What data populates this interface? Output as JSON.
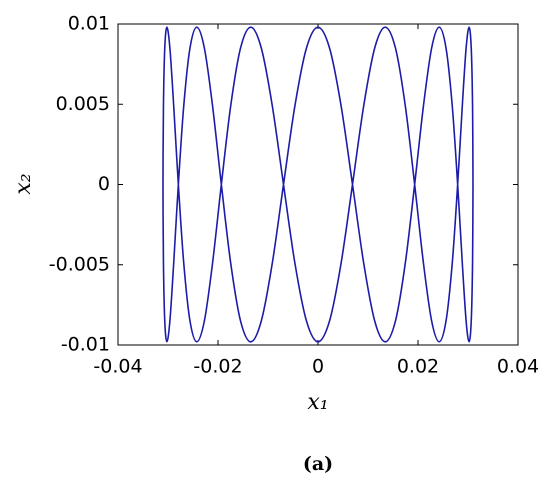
{
  "chart_data": {
    "type": "line",
    "xlabel": "x₁",
    "ylabel": "x₂",
    "caption": "(a)",
    "xlim": [
      -0.04,
      0.04
    ],
    "xticks": [
      -0.04,
      -0.02,
      0,
      0.02,
      0.04
    ],
    "ylim": [
      -0.01,
      0.01
    ],
    "yticks": [
      -0.01,
      -0.005,
      0,
      0.005,
      0.01
    ],
    "grid": false,
    "series": [
      {
        "color": "#1c1ca8",
        "x": [
          0.031,
          0.03091,
          0.03065,
          0.03022,
          0.02962,
          0.02886,
          0.02793,
          0.02685,
          0.02561,
          0.02424,
          0.02272,
          0.02109,
          0.01933,
          0.01746,
          0.0155,
          0.01345,
          0.01133,
          0.00914,
          0.0069,
          0.00462,
          0.00232,
          0,
          -0.00232,
          -0.00462,
          -0.0069,
          -0.00914,
          -0.01133,
          -0.01345,
          -0.0155,
          -0.01746,
          -0.01933,
          -0.02109,
          -0.02272,
          -0.02424,
          -0.02561,
          -0.02685,
          -0.02793,
          -0.02886,
          -0.02962,
          -0.03022,
          -0.03065,
          -0.03091,
          -0.031,
          -0.03091,
          -0.03065,
          -0.03022,
          -0.02962,
          -0.02886,
          -0.02793,
          -0.02685,
          -0.02561,
          -0.02424,
          -0.02272,
          -0.02109,
          -0.01933,
          -0.01746,
          -0.0155,
          -0.01345,
          -0.01133,
          -0.00914,
          -0.0069,
          -0.00462,
          -0.00232,
          0,
          0.00232,
          0.00462,
          0.0069,
          0.00914,
          0.01133,
          0.01345,
          0.0155,
          0.01746,
          0.01933,
          0.02109,
          0.02272,
          0.02424,
          0.02561,
          0.02685,
          0.02793,
          0.02886,
          0.02962,
          0.03022,
          0.03065,
          0.03091,
          0.031
        ],
        "values": [
          0,
          0.0049,
          0.00849,
          0.0098,
          0.00849,
          0.0049,
          0,
          -0.0049,
          -0.00849,
          -0.0098,
          -0.00849,
          -0.0049,
          0,
          0.0049,
          0.00849,
          0.0098,
          0.00849,
          0.0049,
          0,
          -0.0049,
          -0.00849,
          -0.0098,
          -0.00849,
          -0.0049,
          0,
          0.0049,
          0.00849,
          0.0098,
          0.00849,
          0.0049,
          0,
          -0.0049,
          -0.00849,
          -0.0098,
          -0.00849,
          -0.0049,
          0,
          0.0049,
          0.00849,
          0.0098,
          0.00849,
          0.0049,
          0,
          -0.0049,
          -0.00849,
          -0.0098,
          -0.00849,
          -0.0049,
          0,
          0.0049,
          0.00849,
          0.0098,
          0.00849,
          0.0049,
          0,
          -0.0049,
          -0.00849,
          -0.0098,
          -0.00849,
          -0.0049,
          0,
          0.0049,
          0.00849,
          0.0098,
          0.00849,
          0.0049,
          0,
          -0.0049,
          -0.00849,
          -0.0098,
          -0.00849,
          -0.0049,
          0,
          0.0049,
          0.00849,
          0.0098,
          0.00849,
          0.0049,
          0,
          -0.0049,
          -0.00849,
          -0.0098,
          -0.00849,
          -0.0049,
          0
        ]
      }
    ]
  }
}
